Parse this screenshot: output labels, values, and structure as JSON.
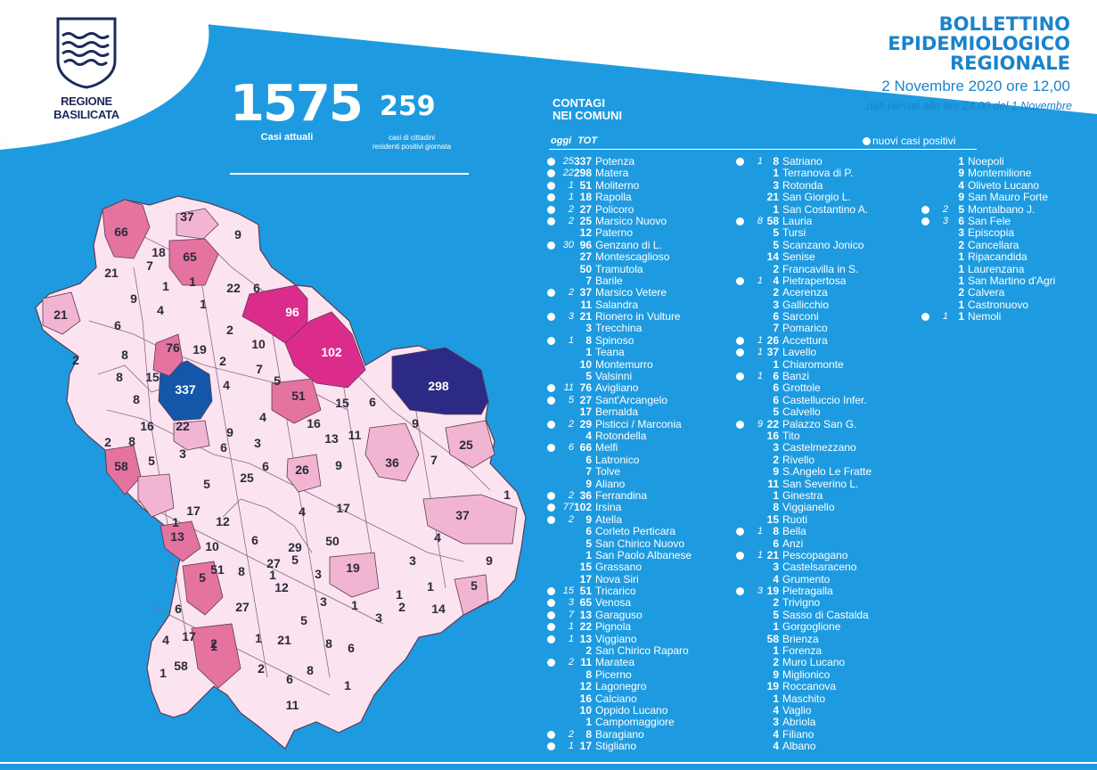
{
  "logo": {
    "line1": "REGIONE",
    "line2": "BASILICATA"
  },
  "header": {
    "title": [
      "BOLLETTINO",
      "EPIDEMIOLOGICO",
      "REGIONALE"
    ],
    "date": "2 Novembre 2020 ore 12,00",
    "note": "dati rilevati alle ore 24,00 del 1 Novembre"
  },
  "summary": {
    "total": "1575",
    "total_label": "Casi attuali",
    "today": "259",
    "today_label": [
      "casi di cittadini",
      "residenti positivi giornata"
    ]
  },
  "list": {
    "title": [
      "CONTAGI",
      "NEI COMUNI"
    ],
    "col_oggi": "oggi",
    "col_tot": "TOT",
    "legend": "nuovi casi positivi"
  },
  "colors": {
    "background": "#1e9be0",
    "map_low": "#fbe3ef",
    "map_mid": "#f2b5d1",
    "map_high": "#e4749f",
    "map_top": "#db2c8c",
    "potenza": "#1457a8",
    "matera": "#2d2a85"
  },
  "columns": [
    [
      {
        "o": "25",
        "t": "337",
        "n": "Potenza"
      },
      {
        "o": "22",
        "t": "298",
        "n": "Matera"
      },
      {
        "o": "1",
        "t": "51",
        "n": "Moliterno"
      },
      {
        "o": "1",
        "t": "18",
        "n": "Rapolla"
      },
      {
        "o": "2",
        "t": "27",
        "n": "Policoro"
      },
      {
        "o": "2",
        "t": "25",
        "n": "Marsico Nuovo"
      },
      {
        "o": "",
        "t": "12",
        "n": "Paterno"
      },
      {
        "o": "30",
        "t": "96",
        "n": "Genzano di L."
      },
      {
        "o": "",
        "t": "27",
        "n": "Montescaglioso"
      },
      {
        "o": "",
        "t": "50",
        "n": "Tramutola"
      },
      {
        "o": "",
        "t": "7",
        "n": "Barile"
      },
      {
        "o": "2",
        "t": "37",
        "n": "Marsico Vetere"
      },
      {
        "o": "",
        "t": "11",
        "n": "Salandra"
      },
      {
        "o": "3",
        "t": "21",
        "n": "Rionero in Vulture"
      },
      {
        "o": "",
        "t": "3",
        "n": "Trecchina"
      },
      {
        "o": "1",
        "t": "8",
        "n": "Spinoso"
      },
      {
        "o": "",
        "t": "1",
        "n": "Teana"
      },
      {
        "o": "",
        "t": "10",
        "n": "Montemurro"
      },
      {
        "o": "",
        "t": "5",
        "n": "Valsinni"
      },
      {
        "o": "11",
        "t": "76",
        "n": "Avigliano"
      },
      {
        "o": "5",
        "t": "27",
        "n": "Sant'Arcangelo"
      },
      {
        "o": "",
        "t": "17",
        "n": "Bernalda"
      },
      {
        "o": "2",
        "t": "29",
        "n": "Pisticci / Marconia"
      },
      {
        "o": "",
        "t": "4",
        "n": "Rotondella"
      },
      {
        "o": "6",
        "t": "66",
        "n": "Melfi"
      },
      {
        "o": "",
        "t": "6",
        "n": "Latronico"
      },
      {
        "o": "",
        "t": "7",
        "n": "Tolve"
      },
      {
        "o": "",
        "t": "9",
        "n": "Aliano"
      },
      {
        "o": "2",
        "t": "36",
        "n": "Ferrandina"
      },
      {
        "o": "77",
        "t": "102",
        "n": "Irsina"
      },
      {
        "o": "2",
        "t": "9",
        "n": "Atella"
      },
      {
        "o": "",
        "t": "6",
        "n": "Corleto Perticara"
      },
      {
        "o": "",
        "t": "5",
        "n": "San Chirico Nuovo"
      },
      {
        "o": "",
        "t": "1",
        "n": "San Paolo Albanese"
      },
      {
        "o": "",
        "t": "15",
        "n": "Grassano"
      },
      {
        "o": "",
        "t": "17",
        "n": "Nova Siri"
      },
      {
        "o": "15",
        "t": "51",
        "n": "Tricarico"
      },
      {
        "o": "3",
        "t": "65",
        "n": "Venosa"
      },
      {
        "o": "7",
        "t": "13",
        "n": "Garaguso"
      },
      {
        "o": "1",
        "t": "22",
        "n": "Pignola"
      },
      {
        "o": "1",
        "t": "13",
        "n": "Viggiano"
      },
      {
        "o": "",
        "t": "2",
        "n": "San Chirico Raparo"
      },
      {
        "o": "2",
        "t": "11",
        "n": "Maratea"
      },
      {
        "o": "",
        "t": "8",
        "n": "Picerno"
      },
      {
        "o": "",
        "t": "12",
        "n": "Lagonegro"
      },
      {
        "o": "",
        "t": "16",
        "n": "Calciano"
      },
      {
        "o": "",
        "t": "10",
        "n": "Oppido Lucano"
      },
      {
        "o": "",
        "t": "1",
        "n": "Campomaggiore"
      },
      {
        "o": "2",
        "t": "8",
        "n": "Baragiano"
      },
      {
        "o": "1",
        "t": "17",
        "n": "Stigliano"
      }
    ],
    [
      {
        "o": "1",
        "t": "8",
        "n": "Satriano"
      },
      {
        "o": "",
        "t": "1",
        "n": "Terranova di P."
      },
      {
        "o": "",
        "t": "3",
        "n": "Rotonda"
      },
      {
        "o": "",
        "t": "21",
        "n": "San Giorgio L."
      },
      {
        "o": "",
        "t": "1",
        "n": "San Costantino A."
      },
      {
        "o": "8",
        "t": "58",
        "n": "Lauria"
      },
      {
        "o": "",
        "t": "5",
        "n": "Tursi"
      },
      {
        "o": "",
        "t": "5",
        "n": "Scanzano Jonico"
      },
      {
        "o": "",
        "t": "14",
        "n": "Senise"
      },
      {
        "o": "",
        "t": "2",
        "n": "Francavilla in S."
      },
      {
        "o": "1",
        "t": "4",
        "n": "Pietrapertosa"
      },
      {
        "o": "",
        "t": "2",
        "n": "Acerenza"
      },
      {
        "o": "",
        "t": "3",
        "n": "Gallicchio"
      },
      {
        "o": "",
        "t": "6",
        "n": "Sarconi"
      },
      {
        "o": "",
        "t": "7",
        "n": "Pomarico"
      },
      {
        "o": "1",
        "t": "26",
        "n": "Accettura"
      },
      {
        "o": "1",
        "t": "37",
        "n": "Lavello"
      },
      {
        "o": "",
        "t": "1",
        "n": "Chiaromonte"
      },
      {
        "o": "1",
        "t": "6",
        "n": "Banzi"
      },
      {
        "o": "",
        "t": "6",
        "n": "Grottole"
      },
      {
        "o": "",
        "t": "6",
        "n": "Castelluccio Infer."
      },
      {
        "o": "",
        "t": "5",
        "n": "Calvello"
      },
      {
        "o": "9",
        "t": "22",
        "n": "Palazzo San G."
      },
      {
        "o": "",
        "t": "16",
        "n": "Tito"
      },
      {
        "o": "",
        "t": "3",
        "n": "Castelmezzano"
      },
      {
        "o": "",
        "t": "2",
        "n": "Rivello"
      },
      {
        "o": "",
        "t": "9",
        "n": "S.Angelo Le Fratte"
      },
      {
        "o": "",
        "t": "11",
        "n": "San Severino L."
      },
      {
        "o": "",
        "t": "1",
        "n": "Ginestra"
      },
      {
        "o": "",
        "t": "8",
        "n": "Viggianello"
      },
      {
        "o": "",
        "t": "15",
        "n": "Ruoti"
      },
      {
        "o": "1",
        "t": "8",
        "n": "Bella"
      },
      {
        "o": "",
        "t": "6",
        "n": "Anzi"
      },
      {
        "o": "1",
        "t": "21",
        "n": "Pescopagano"
      },
      {
        "o": "",
        "t": "3",
        "n": "Castelsaraceno"
      },
      {
        "o": "",
        "t": "4",
        "n": "Grumento"
      },
      {
        "o": "3",
        "t": "19",
        "n": "Pietragalla"
      },
      {
        "o": "",
        "t": "2",
        "n": "Trivigno"
      },
      {
        "o": "",
        "t": "5",
        "n": "Sasso di Castalda"
      },
      {
        "o": "",
        "t": "1",
        "n": "Gorgoglione"
      },
      {
        "o": "",
        "t": "58",
        "n": "Brienza"
      },
      {
        "o": "",
        "t": "1",
        "n": "Forenza"
      },
      {
        "o": "",
        "t": "2",
        "n": "Muro Lucano"
      },
      {
        "o": "",
        "t": "9",
        "n": "Miglionico"
      },
      {
        "o": "",
        "t": "19",
        "n": "Roccanova"
      },
      {
        "o": "",
        "t": "1",
        "n": "Maschito"
      },
      {
        "o": "",
        "t": "4",
        "n": "Vaglio"
      },
      {
        "o": "",
        "t": "3",
        "n": "Abriola"
      },
      {
        "o": "",
        "t": "4",
        "n": "Filiano"
      },
      {
        "o": "",
        "t": "4",
        "n": "Albano"
      }
    ],
    [
      {
        "o": "",
        "t": "1",
        "n": "Noepoli"
      },
      {
        "o": "",
        "t": "9",
        "n": "Montemilione"
      },
      {
        "o": "",
        "t": "4",
        "n": "Oliveto Lucano"
      },
      {
        "o": "",
        "t": "9",
        "n": "San Mauro Forte"
      },
      {
        "o": "2",
        "t": "5",
        "n": "Montalbano J."
      },
      {
        "o": "3",
        "t": "6",
        "n": "San Fele"
      },
      {
        "o": "",
        "t": "3",
        "n": "Episcopia"
      },
      {
        "o": "",
        "t": "2",
        "n": "Cancellara"
      },
      {
        "o": "",
        "t": "1",
        "n": "Ripacandida"
      },
      {
        "o": "",
        "t": "1",
        "n": "Laurenzana"
      },
      {
        "o": "",
        "t": "1",
        "n": "San Martino d'Agri"
      },
      {
        "o": "",
        "t": "2",
        "n": "Calvera"
      },
      {
        "o": "",
        "t": "1",
        "n": "Castronuovo"
      },
      {
        "o": "1",
        "t": "1",
        "n": "Nemoli"
      }
    ]
  ],
  "map_labels": [
    "66",
    "37",
    "9",
    "18",
    "65",
    "21",
    "7",
    "1",
    "1",
    "22",
    "6",
    "21",
    "9",
    "4",
    "1",
    "6",
    "96",
    "76",
    "19",
    "2",
    "10",
    "2",
    "8",
    "102",
    "8",
    "15",
    "2",
    "7",
    "5",
    "298",
    "337",
    "4",
    "51",
    "8",
    "15",
    "6",
    "16",
    "22",
    "4",
    "9",
    "9",
    "8",
    "2",
    "3",
    "16",
    "13",
    "11",
    "25",
    "58",
    "5",
    "3",
    "6",
    "6",
    "26",
    "9",
    "36",
    "7",
    "25",
    "5",
    "1",
    "4",
    "17",
    "1",
    "17",
    "12",
    "37",
    "13",
    "6",
    "29",
    "50",
    "4",
    "10",
    "3",
    "9",
    "5",
    "51",
    "8",
    "1",
    "3",
    "19",
    "27",
    "5",
    "5",
    "6",
    "27",
    "12",
    "3",
    "1",
    "1",
    "14",
    "4",
    "17",
    "2",
    "1",
    "21",
    "5",
    "8",
    "6",
    "3",
    "2",
    "1",
    "1",
    "58",
    "2",
    "6",
    "8",
    "1",
    "1",
    "11",
    "3"
  ]
}
